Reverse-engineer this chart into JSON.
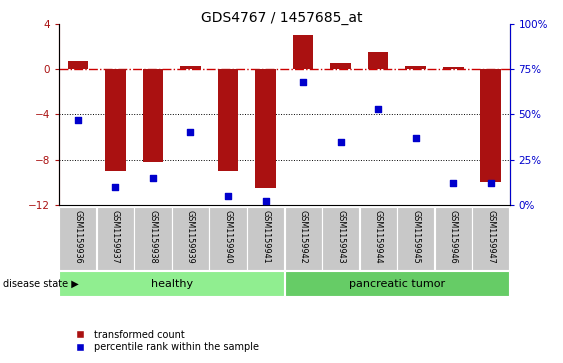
{
  "title": "GDS4767 / 1457685_at",
  "samples": [
    "GSM1159936",
    "GSM1159937",
    "GSM1159938",
    "GSM1159939",
    "GSM1159940",
    "GSM1159941",
    "GSM1159942",
    "GSM1159943",
    "GSM1159944",
    "GSM1159945",
    "GSM1159946",
    "GSM1159947"
  ],
  "red_values": [
    0.7,
    -9.0,
    -8.2,
    0.3,
    -9.0,
    -10.5,
    3.0,
    0.5,
    1.5,
    0.3,
    0.2,
    -10.0
  ],
  "blue_values": [
    47,
    10,
    15,
    40,
    5,
    2,
    68,
    35,
    53,
    37,
    12,
    12
  ],
  "healthy_count": 6,
  "tumor_count": 6,
  "ylim_left": [
    -12,
    4
  ],
  "ylim_right": [
    0,
    100
  ],
  "yticks_left": [
    -12,
    -8,
    -4,
    0,
    4
  ],
  "yticks_right": [
    0,
    25,
    50,
    75,
    100
  ],
  "bar_color": "#aa1111",
  "dot_color": "#0000cc",
  "healthy_color": "#90ee90",
  "tumor_color": "#66cc66",
  "label_bg_color": "#c8c8c8",
  "hline_color": "#cc0000",
  "grid_color": "#000000",
  "legend_red": "transformed count",
  "legend_blue": "percentile rank within the sample",
  "label_healthy": "healthy",
  "label_tumor": "pancreatic tumor",
  "disease_state_label": "disease state"
}
